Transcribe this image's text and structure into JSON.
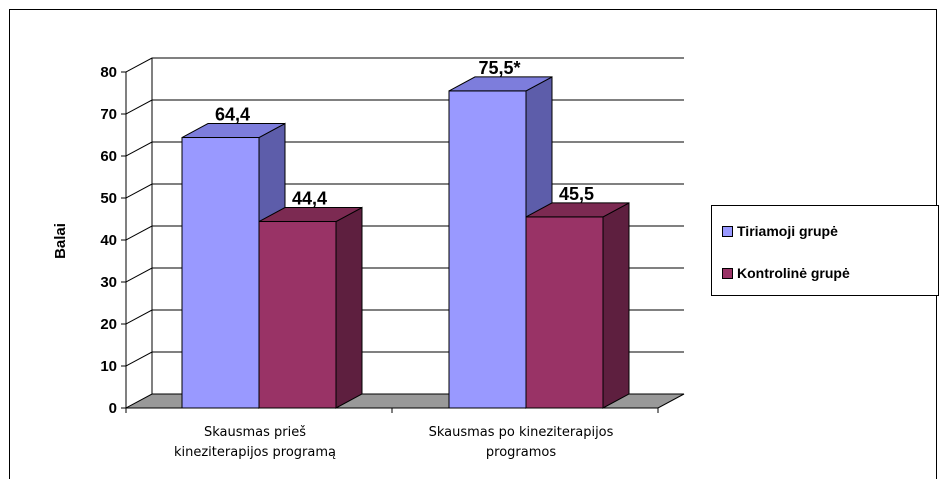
{
  "chart_data": {
    "type": "bar",
    "style": "3d-clustered-column",
    "ylabel": "Balai",
    "xlabel": "",
    "ylim": [
      0,
      80
    ],
    "ytick_step": 10,
    "grid": true,
    "legend_position": "right",
    "categories": [
      [
        "Skausmas prieš",
        "kineziterapijos programą"
      ],
      [
        "Skausmas po kineziterapijos",
        "programos"
      ]
    ],
    "series": [
      {
        "name": "Tiriamoji grupė",
        "values": [
          64.4,
          75.5
        ],
        "labels": [
          "64,4",
          "75,5*"
        ],
        "colors": {
          "front": "#9999ff",
          "side": "#5d5daa",
          "top": "#7d7ddc"
        }
      },
      {
        "name": "Kontrolinė grupė",
        "values": [
          44.4,
          45.5
        ],
        "labels": [
          "44,4",
          "45,5"
        ],
        "colors": {
          "front": "#993366",
          "side": "#5e1f3f",
          "top": "#7c2a52"
        }
      }
    ]
  }
}
